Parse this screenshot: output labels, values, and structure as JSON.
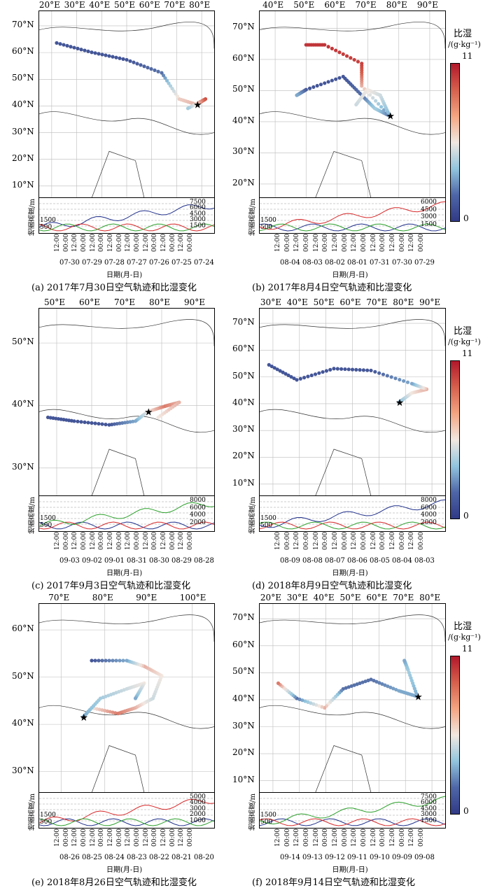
{
  "panels": [
    {
      "caption": "(a) 2017年7月30日空气轨迹和比湿变化",
      "lon_labels": [
        "20°E",
        "30°E",
        "40°E",
        "50°E",
        "60°E",
        "70°E",
        "80°E"
      ],
      "lat_labels": [
        "70°N",
        "60°N",
        "50°N",
        "40°N",
        "30°N",
        "20°N",
        "10°N"
      ],
      "alt_labels_right": [
        "7500",
        "6000",
        "4500",
        "3000",
        "1500"
      ],
      "alt_label_left": "1500",
      "alt_label_500": "500",
      "ylabel": "地面高度/m",
      "time_labels": [
        "12:00",
        "00:00",
        "12:00",
        "00:00",
        "12:00",
        "00:00",
        "12:00",
        "00:00",
        "12:00",
        "00:00",
        "12:00",
        "00:00",
        "12:00",
        "00:00",
        "12:00",
        "00:00"
      ],
      "date_labels": "07-30 07-29 07-28 07-27 07-26 07-25 07-24",
      "xlabel": "日期(月-日)"
    },
    {
      "caption": "(b) 2017年8月4日空气轨迹和比湿变化",
      "lon_labels": [
        "40°E",
        "50°E",
        "60°E",
        "70°E",
        "80°E",
        "90°E"
      ],
      "lat_labels": [
        "70°N",
        "60°N",
        "50°N",
        "40°N",
        "30°N",
        "20°N"
      ],
      "alt_labels_right": [
        "6000",
        "4500",
        "3000",
        "1500"
      ],
      "alt_label_left": "1500",
      "alt_label_500": "500",
      "ylabel": "地面高度/m",
      "time_labels": [
        "12:00",
        "00:00",
        "12:00",
        "00:00",
        "12:00",
        "00:00",
        "12:00",
        "00:00",
        "12:00",
        "00:00",
        "12:00",
        "00:00",
        "12:00",
        "00:00",
        "12:00",
        "00:00"
      ],
      "date_labels": "08-04 08-03 08-02 08-01 07-31 07-30 07-29",
      "xlabel": "日期(月-日)"
    },
    {
      "caption": "(c) 2017年9月3日空气轨迹和比湿变化",
      "lon_labels": [
        "50°E",
        "60°E",
        "70°E",
        "80°E",
        "90°E"
      ],
      "lat_labels": [
        "50°N",
        "40°N",
        "30°N"
      ],
      "alt_labels_right": [
        "8000",
        "6000",
        "4000",
        "2000"
      ],
      "alt_label_left": "1500",
      "alt_label_500": "500",
      "ylabel": "地面高度/m",
      "time_labels": [
        "12:00",
        "00:00",
        "12:00",
        "00:00",
        "12:00",
        "00:00",
        "12:00",
        "00:00",
        "12:00",
        "00:00",
        "12:00",
        "00:00",
        "12:00",
        "00:00",
        "12:00",
        "00:00"
      ],
      "date_labels": "09-03 09-02 09-01 08-31 08-30 08-29 08-28",
      "xlabel": "日期(月-日)"
    },
    {
      "caption": "(d) 2018年8月9日空气轨迹和比湿变化",
      "lon_labels": [
        "30°E",
        "40°E",
        "50°E",
        "60°E",
        "70°E",
        "80°E",
        "90°E"
      ],
      "lat_labels": [
        "70°N",
        "60°N",
        "50°N",
        "40°N",
        "30°N",
        "20°N",
        "10°N"
      ],
      "alt_labels_right": [
        "8000",
        "6000",
        "4000",
        "2000"
      ],
      "alt_label_left": "1500",
      "alt_label_500": "500",
      "ylabel": "地面高度/m",
      "time_labels": [
        "12:00",
        "00:00",
        "12:00",
        "00:00",
        "12:00",
        "00:00",
        "12:00",
        "00:00",
        "12:00",
        "00:00",
        "12:00",
        "00:00",
        "12:00",
        "00:00",
        "12:00",
        "00:00"
      ],
      "date_labels": "08-09 08-08 08-07 08-06 08-05 08-04 08-03",
      "xlabel": "日期(月-日)"
    },
    {
      "caption": "(e) 2018年8月26日空气轨迹和比湿变化",
      "lon_labels": [
        "70°E",
        "80°E",
        "90°E",
        "100°E"
      ],
      "lat_labels": [
        "60°N",
        "50°N",
        "40°N",
        "30°N"
      ],
      "alt_labels_right": [
        "5000",
        "4000",
        "3000",
        "2000",
        "1000"
      ],
      "alt_label_left": "1500",
      "alt_label_500": "500",
      "ylabel": "地面高度/m",
      "time_labels": [
        "12:00",
        "00:00",
        "12:00",
        "00:00",
        "12:00",
        "00:00",
        "12:00",
        "00:00",
        "12:00",
        "00:00",
        "12:00",
        "00:00",
        "12:00",
        "00:00",
        "12:00",
        "00:00"
      ],
      "date_labels": "08-26 08-25 08-24 08-23 08-22 08-21 08-20",
      "xlabel": "日期(月-日)"
    },
    {
      "caption": "(f) 2018年9月14日空气轨迹和比湿变化",
      "lon_labels": [
        "20°E",
        "30°E",
        "40°E",
        "50°E",
        "60°E",
        "70°E",
        "80°E"
      ],
      "lat_labels": [
        "70°N",
        "60°N",
        "50°N",
        "40°N",
        "30°N",
        "20°N",
        "10°N"
      ],
      "alt_labels_right": [
        "7500",
        "6000",
        "4500",
        "3000",
        "1500"
      ],
      "alt_label_left": "1500",
      "alt_label_500": "500",
      "ylabel": "地面高度/m",
      "time_labels": [
        "12:00",
        "00:00",
        "12:00",
        "00:00",
        "12:00",
        "00:00",
        "12:00",
        "00:00",
        "12:00",
        "00:00",
        "12:00",
        "00:00",
        "12:00",
        "00:00",
        "12:00",
        "00:00"
      ],
      "date_labels": "09-14 09-13 09-12 09-11 09-10 09-09 09-08",
      "xlabel": "日期(月-日)"
    }
  ],
  "colorbar": {
    "title": "比湿",
    "unit": "/(g·kg⁻¹)",
    "max": "11",
    "min": "0",
    "colors": [
      "#b2182b",
      "#f2e8e1",
      "#313a86"
    ]
  }
}
